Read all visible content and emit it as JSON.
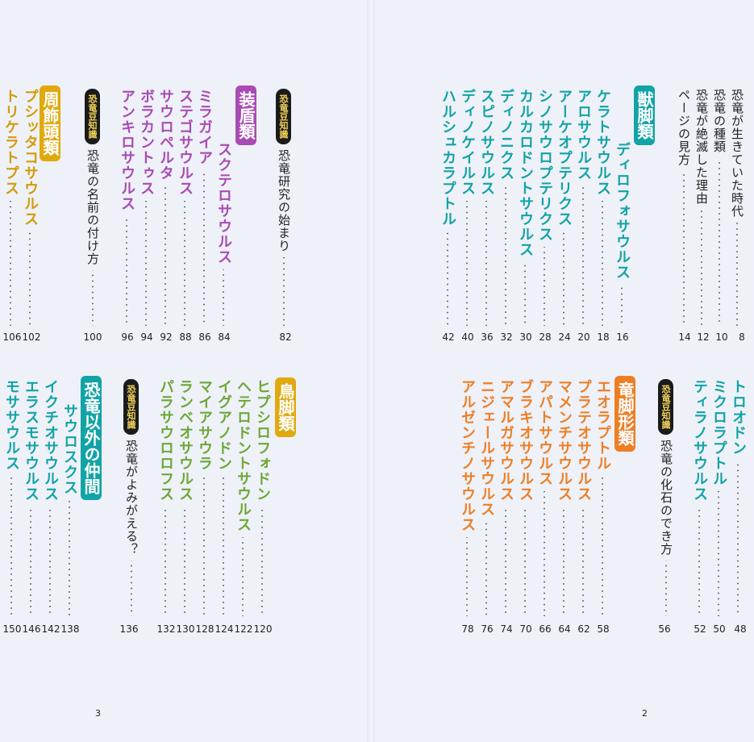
{
  "colors": {
    "purple": "#a94bb4",
    "yellow": "#d49a08",
    "green": "#6ea737",
    "teal": "#12a3a6",
    "orange": "#ee7e24",
    "badge_bg": "#1b1b1b"
  },
  "left_page": {
    "page_number": "3",
    "top": {
      "column_intro": {
        "badge": "恐竜豆知識",
        "title": "恐竜研究の始まり",
        "page": "82"
      },
      "category": "装盾類",
      "items": [
        {
          "title": "スクテロサウルス",
          "page": "84"
        },
        {
          "title": "ミラガイア",
          "page": "86"
        },
        {
          "title": "ステゴサウルス",
          "page": "88"
        },
        {
          "title": "サウロペルタ",
          "page": "92"
        },
        {
          "title": "ボラカントゥス",
          "page": "94"
        },
        {
          "title": "アンキロサウルス",
          "page": "96"
        }
      ],
      "column_name": {
        "badge": "恐竜豆知識",
        "title": "恐竜の名前の付け方",
        "page": "100"
      },
      "category2": "周飾頭類",
      "items2": [
        {
          "title": "プシッタコサウルス",
          "page": "102"
        },
        {
          "title": "トリケラトプス",
          "page": "106"
        }
      ]
    },
    "bottom": {
      "category": "鳥脚類",
      "items": [
        {
          "title": "ヒプシロフォドン",
          "page": "120"
        },
        {
          "title": "ヘテロドントサウルス",
          "page": "122"
        },
        {
          "title": "イグアノドン",
          "page": "124"
        },
        {
          "title": "マイアサウラ",
          "page": "128"
        },
        {
          "title": "ランベオサウルス",
          "page": "130"
        },
        {
          "title": "パラサウロロフス",
          "page": "132"
        }
      ],
      "column_revive": {
        "badge": "恐竜豆知識",
        "title": "恐竜がよみがえる？",
        "page": "136"
      },
      "category2": "恐竜以外の仲間",
      "items2": [
        {
          "title": "サウロスクス",
          "page": "138"
        },
        {
          "title": "イクチオサウルス",
          "page": "142"
        },
        {
          "title": "エラスモサウルス",
          "page": "146"
        },
        {
          "title": "モササウルス",
          "page": "150"
        }
      ]
    }
  },
  "right_page": {
    "page_number": "2",
    "top": {
      "intro": [
        {
          "title": "恐竜が生きていた時代",
          "page": "8"
        },
        {
          "title": "恐竜の種類",
          "page": "10"
        },
        {
          "title": "恐竜が絶滅した理由",
          "page": "12"
        },
        {
          "title": "ページの見方",
          "page": "14"
        }
      ],
      "category": "獣脚類",
      "items": [
        {
          "title": "ディロフォサウルス",
          "page": "16"
        },
        {
          "title": "ケラトサウルス",
          "page": "18"
        },
        {
          "title": "アロサウルス",
          "page": "20"
        },
        {
          "title": "アーケオプテリクス",
          "page": "24"
        },
        {
          "title": "シノサウロプテリクス",
          "page": "28"
        },
        {
          "title": "カルカロドントサウルス",
          "page": "30"
        },
        {
          "title": "ディノニクス",
          "page": "32"
        },
        {
          "title": "スピノサウルス",
          "page": "36"
        },
        {
          "title": "ディノケイルス",
          "page": "40"
        },
        {
          "title": "ハルシュカラプトル",
          "page": "42"
        }
      ]
    },
    "bottom": {
      "items_cont": [
        {
          "title": "トロオドン",
          "page": "48"
        },
        {
          "title": "ミクロラプトル",
          "page": "50"
        },
        {
          "title": "ティラノサウルス",
          "page": "52"
        }
      ],
      "column_fossil": {
        "badge": "恐竜豆知識",
        "title": "恐竜の化石のでき方",
        "page": "56"
      },
      "category": "竜脚形類",
      "items": [
        {
          "title": "エオラプトル",
          "page": "58"
        },
        {
          "title": "プラテオサウルス",
          "page": "62"
        },
        {
          "title": "マメンチサウルス",
          "page": "64"
        },
        {
          "title": "アパトサウルス",
          "page": "66"
        },
        {
          "title": "ブラキオサウルス",
          "page": "70"
        },
        {
          "title": "アマルガサウルス",
          "page": "74"
        },
        {
          "title": "ニジェールサウルス",
          "page": "76"
        },
        {
          "title": "アルゼンチノサウルス",
          "page": "78"
        }
      ]
    }
  }
}
